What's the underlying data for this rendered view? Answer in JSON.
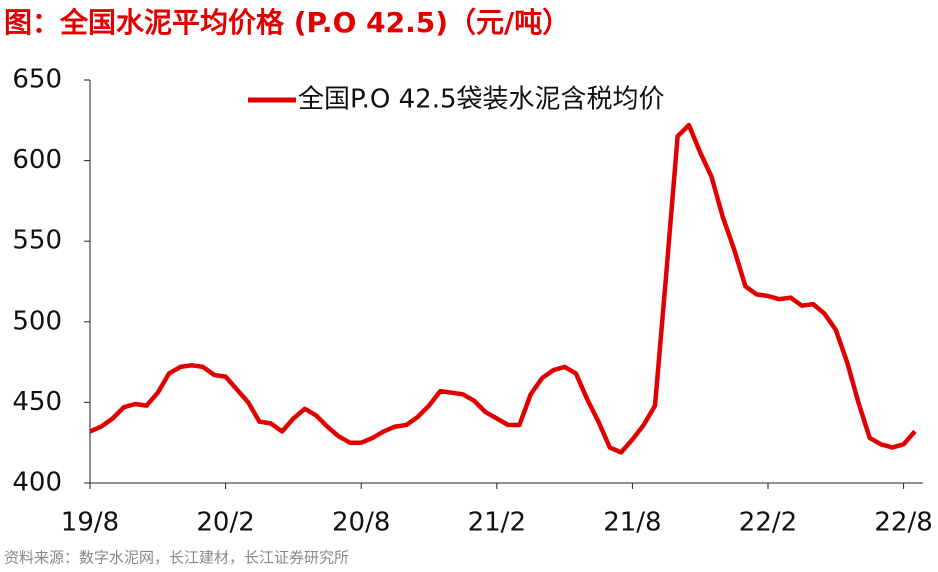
{
  "chart_data": {
    "type": "line",
    "title": "图：全国水泥平均价格 (P.O 42.5)（元/吨）",
    "source": "资料来源：数字水泥网，长江建材，长江证券研究所",
    "categories": [
      "19/8",
      null,
      null,
      null,
      null,
      null,
      null,
      null,
      null,
      null,
      null,
      null,
      "20/2",
      null,
      null,
      null,
      null,
      null,
      null,
      null,
      null,
      null,
      null,
      null,
      "20/8",
      null,
      null,
      null,
      null,
      null,
      null,
      null,
      null,
      null,
      null,
      null,
      "21/2",
      null,
      null,
      null,
      null,
      null,
      null,
      null,
      null,
      null,
      null,
      null,
      "21/8",
      null,
      null,
      null,
      null,
      null,
      null,
      null,
      null,
      null,
      null,
      null,
      "22/2",
      null,
      null,
      null,
      null,
      null,
      null,
      null,
      null,
      null,
      null,
      null,
      "22/8",
      null
    ],
    "series": [
      {
        "name": "全国P.O 42.5袋装水泥含税均价",
        "color": "#e00000",
        "values": [
          432,
          435,
          440,
          447,
          449,
          448,
          456,
          468,
          472,
          473,
          472,
          467,
          466,
          458,
          450,
          438,
          437,
          432,
          440,
          446,
          442,
          435,
          429,
          425,
          425,
          428,
          432,
          435,
          436,
          441,
          448,
          457,
          456,
          455,
          451,
          444,
          440,
          436,
          436,
          455,
          465,
          470,
          472,
          468,
          452,
          438,
          422,
          419,
          427,
          436,
          448,
          530,
          615,
          622,
          605,
          590,
          565,
          545,
          522,
          517,
          516,
          514,
          515,
          510,
          511,
          505,
          495,
          475,
          450,
          428,
          424,
          422,
          424,
          432
        ]
      }
    ],
    "ylim": [
      400,
      650
    ],
    "yticks": [
      400,
      450,
      500,
      550,
      600,
      650
    ],
    "grid": false,
    "legend": "top"
  }
}
